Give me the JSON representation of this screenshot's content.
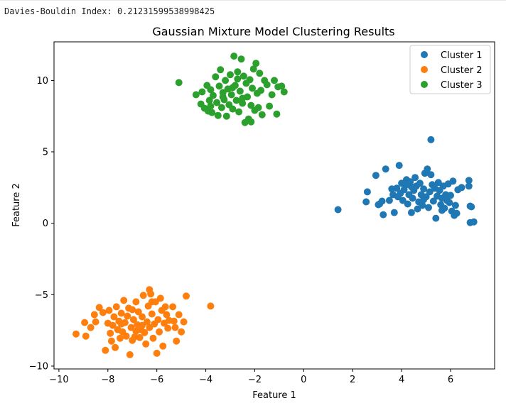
{
  "header": {
    "metric_text": "Davies-Bouldin Index: 0.21231599538998425"
  },
  "chart_data": {
    "type": "scatter",
    "title": "Gaussian Mixture Model Clustering Results",
    "xlabel": "Feature 1",
    "ylabel": "Feature 2",
    "xlim": [
      -10.2,
      7.8
    ],
    "ylim": [
      -10.2,
      12.7
    ],
    "xticks": [
      -10,
      -8,
      -6,
      -4,
      -2,
      0,
      2,
      4,
      6
    ],
    "yticks": [
      -10,
      -5,
      0,
      5,
      10
    ],
    "xtick_labels": [
      "−10",
      "−8",
      "−6",
      "−4",
      "−2",
      "0",
      "2",
      "4",
      "6"
    ],
    "ytick_labels": [
      "−10",
      "−5",
      "0",
      "5",
      "10"
    ],
    "grid": false,
    "legend_position": "top-right",
    "series": [
      {
        "name": "Cluster 1",
        "color": "#1f77b4",
        "points": [
          [
            1.4,
            0.95
          ],
          [
            2.55,
            1.5
          ],
          [
            2.6,
            2.2
          ],
          [
            2.95,
            3.35
          ],
          [
            3.1,
            1.35
          ],
          [
            3.2,
            1.55
          ],
          [
            3.25,
            0.6
          ],
          [
            3.35,
            3.8
          ],
          [
            3.5,
            1.6
          ],
          [
            3.6,
            2.4
          ],
          [
            3.65,
            2.0
          ],
          [
            3.7,
            0.75
          ],
          [
            3.8,
            2.45
          ],
          [
            3.85,
            1.85
          ],
          [
            3.9,
            4.05
          ],
          [
            3.95,
            2.1
          ],
          [
            4.0,
            2.8
          ],
          [
            4.05,
            1.6
          ],
          [
            4.1,
            2.35
          ],
          [
            4.15,
            2.65
          ],
          [
            4.2,
            3.05
          ],
          [
            4.25,
            1.35
          ],
          [
            4.3,
            2.0
          ],
          [
            4.35,
            2.9
          ],
          [
            4.4,
            0.75
          ],
          [
            4.45,
            1.75
          ],
          [
            4.5,
            2.3
          ],
          [
            4.55,
            3.2
          ],
          [
            4.6,
            2.6
          ],
          [
            4.65,
            1.0
          ],
          [
            4.7,
            1.5
          ],
          [
            4.75,
            2.8
          ],
          [
            4.8,
            2.0
          ],
          [
            4.85,
            1.25
          ],
          [
            4.9,
            2.4
          ],
          [
            4.95,
            3.5
          ],
          [
            5.0,
            1.85
          ],
          [
            5.05,
            3.8
          ],
          [
            5.1,
            1.1
          ],
          [
            5.15,
            2.2
          ],
          [
            5.2,
            3.4
          ],
          [
            5.2,
            5.85
          ],
          [
            5.25,
            2.7
          ],
          [
            5.3,
            1.55
          ],
          [
            5.35,
            2.45
          ],
          [
            5.4,
            0.35
          ],
          [
            5.45,
            1.9
          ],
          [
            5.5,
            2.85
          ],
          [
            5.55,
            2.3
          ],
          [
            5.6,
            1.3
          ],
          [
            5.65,
            1.75
          ],
          [
            5.7,
            2.6
          ],
          [
            5.75,
            1.05
          ],
          [
            5.8,
            2.0
          ],
          [
            5.85,
            1.6
          ],
          [
            5.9,
            2.75
          ],
          [
            5.95,
            1.45
          ],
          [
            6.0,
            1.95
          ],
          [
            6.05,
            0.85
          ],
          [
            6.1,
            2.95
          ],
          [
            6.15,
            0.55
          ],
          [
            6.2,
            1.25
          ],
          [
            6.25,
            0.7
          ],
          [
            6.3,
            2.35
          ],
          [
            6.45,
            2.5
          ],
          [
            6.75,
            3.0
          ],
          [
            6.75,
            2.6
          ],
          [
            6.8,
            1.2
          ],
          [
            6.85,
            1.15
          ],
          [
            6.8,
            0.05
          ],
          [
            6.95,
            0.1
          ],
          [
            4.4,
            2.55
          ],
          [
            3.05,
            1.3
          ],
          [
            4.9,
            1.65
          ],
          [
            5.65,
            0.9
          ]
        ]
      },
      {
        "name": "Cluster 2",
        "color": "#ff7f0e",
        "points": [
          [
            -9.3,
            -7.75
          ],
          [
            -8.95,
            -6.95
          ],
          [
            -8.9,
            -7.9
          ],
          [
            -8.7,
            -7.3
          ],
          [
            -8.55,
            -6.4
          ],
          [
            -8.5,
            -6.9
          ],
          [
            -8.35,
            -5.9
          ],
          [
            -8.2,
            -6.25
          ],
          [
            -8.1,
            -8.9
          ],
          [
            -8.0,
            -7.0
          ],
          [
            -7.95,
            -6.1
          ],
          [
            -7.9,
            -7.7
          ],
          [
            -7.85,
            -8.25
          ],
          [
            -7.8,
            -7.15
          ],
          [
            -7.75,
            -6.55
          ],
          [
            -7.7,
            -8.7
          ],
          [
            -7.65,
            -5.85
          ],
          [
            -7.6,
            -7.45
          ],
          [
            -7.55,
            -6.85
          ],
          [
            -7.5,
            -8.05
          ],
          [
            -7.45,
            -6.3
          ],
          [
            -7.4,
            -7.6
          ],
          [
            -7.35,
            -5.4
          ],
          [
            -7.3,
            -6.95
          ],
          [
            -7.25,
            -7.9
          ],
          [
            -7.2,
            -6.5
          ],
          [
            -7.15,
            -5.95
          ],
          [
            -7.1,
            -9.2
          ],
          [
            -7.05,
            -7.3
          ],
          [
            -7.0,
            -8.2
          ],
          [
            -6.95,
            -6.75
          ],
          [
            -6.9,
            -7.95
          ],
          [
            -6.85,
            -5.5
          ],
          [
            -6.8,
            -7.1
          ],
          [
            -6.75,
            -6.2
          ],
          [
            -6.7,
            -8.0
          ],
          [
            -6.65,
            -7.45
          ],
          [
            -6.6,
            -6.55
          ],
          [
            -6.55,
            -5.05
          ],
          [
            -6.5,
            -7.65
          ],
          [
            -6.45,
            -8.45
          ],
          [
            -6.4,
            -6.9
          ],
          [
            -6.35,
            -5.8
          ],
          [
            -6.3,
            -7.3
          ],
          [
            -6.25,
            -4.95
          ],
          [
            -6.2,
            -6.35
          ],
          [
            -6.15,
            -8.05
          ],
          [
            -6.1,
            -7.05
          ],
          [
            -6.05,
            -5.5
          ],
          [
            -6.0,
            -9.1
          ],
          [
            -5.95,
            -6.75
          ],
          [
            -5.9,
            -7.6
          ],
          [
            -5.85,
            -5.25
          ],
          [
            -5.8,
            -6.1
          ],
          [
            -5.75,
            -8.6
          ],
          [
            -5.7,
            -7.0
          ],
          [
            -5.65,
            -5.85
          ],
          [
            -5.6,
            -6.4
          ],
          [
            -5.55,
            -7.35
          ],
          [
            -5.5,
            -6.8
          ],
          [
            -5.35,
            -5.85
          ],
          [
            -5.3,
            -6.85
          ],
          [
            -5.25,
            -7.3
          ],
          [
            -5.2,
            -8.25
          ],
          [
            -5.1,
            -6.4
          ],
          [
            -5.0,
            -7.6
          ],
          [
            -4.9,
            -6.9
          ],
          [
            -4.8,
            -5.1
          ],
          [
            -3.8,
            -5.8
          ],
          [
            -6.3,
            -4.65
          ],
          [
            -7.0,
            -6.05
          ],
          [
            -6.6,
            -7.15
          ],
          [
            -7.45,
            -7.05
          ],
          [
            -6.85,
            -7.55
          ],
          [
            -6.2,
            -5.5
          ]
        ]
      },
      {
        "name": "Cluster 3",
        "color": "#2ca02c",
        "points": [
          [
            -5.1,
            9.85
          ],
          [
            -4.4,
            9.0
          ],
          [
            -4.2,
            8.35
          ],
          [
            -4.15,
            9.2
          ],
          [
            -4.05,
            8.05
          ],
          [
            -3.95,
            9.65
          ],
          [
            -3.9,
            7.85
          ],
          [
            -3.85,
            8.6
          ],
          [
            -3.8,
            9.35
          ],
          [
            -3.75,
            7.75
          ],
          [
            -3.7,
            8.95
          ],
          [
            -3.6,
            10.25
          ],
          [
            -3.55,
            8.45
          ],
          [
            -3.5,
            7.55
          ],
          [
            -3.45,
            9.6
          ],
          [
            -3.4,
            10.75
          ],
          [
            -3.35,
            8.1
          ],
          [
            -3.3,
            9.15
          ],
          [
            -3.25,
            8.65
          ],
          [
            -3.2,
            10.0
          ],
          [
            -3.15,
            7.5
          ],
          [
            -3.1,
            9.4
          ],
          [
            -3.05,
            8.3
          ],
          [
            -3.0,
            10.4
          ],
          [
            -2.95,
            9.0
          ],
          [
            -2.9,
            8.0
          ],
          [
            -2.85,
            11.7
          ],
          [
            -2.8,
            9.65
          ],
          [
            -2.75,
            8.6
          ],
          [
            -2.7,
            10.1
          ],
          [
            -2.65,
            7.8
          ],
          [
            -2.6,
            9.25
          ],
          [
            -2.55,
            11.5
          ],
          [
            -2.5,
            8.4
          ],
          [
            -2.45,
            10.3
          ],
          [
            -2.4,
            7.05
          ],
          [
            -2.35,
            9.8
          ],
          [
            -2.3,
            8.85
          ],
          [
            -2.25,
            7.3
          ],
          [
            -2.2,
            10.05
          ],
          [
            -2.15,
            8.25
          ],
          [
            -2.1,
            9.45
          ],
          [
            -2.05,
            10.8
          ],
          [
            -2.0,
            7.9
          ],
          [
            -1.95,
            11.2
          ],
          [
            -1.9,
            9.1
          ],
          [
            -1.85,
            8.1
          ],
          [
            -1.8,
            10.5
          ],
          [
            -1.75,
            9.3
          ],
          [
            -1.7,
            7.6
          ],
          [
            -1.6,
            10.0
          ],
          [
            -1.5,
            9.7
          ],
          [
            -1.4,
            8.2
          ],
          [
            -1.3,
            9.0
          ],
          [
            -1.2,
            10.0
          ],
          [
            -1.1,
            7.65
          ],
          [
            -1.05,
            9.55
          ],
          [
            -0.9,
            9.6
          ],
          [
            -0.8,
            9.2
          ],
          [
            -2.5,
            8.75
          ],
          [
            -2.9,
            9.5
          ],
          [
            -3.3,
            8.85
          ],
          [
            -2.15,
            7.1
          ],
          [
            -2.7,
            10.6
          ],
          [
            -3.8,
            8.2
          ]
        ]
      }
    ]
  }
}
